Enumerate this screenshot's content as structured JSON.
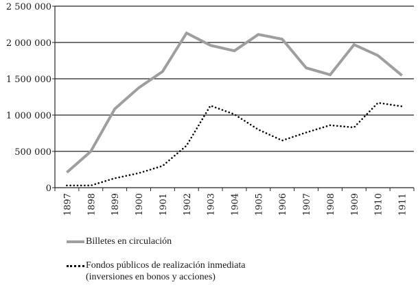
{
  "chart_data": {
    "type": "line",
    "title": "",
    "xlabel": "",
    "ylabel": "",
    "ylim": [
      0,
      2500000
    ],
    "y_ticks": [
      "0",
      "500 000",
      "1 000 000",
      "1 500 000",
      "2 000 000",
      "2 500 000"
    ],
    "y_tick_values": [
      0,
      500000,
      1000000,
      1500000,
      2000000,
      2500000
    ],
    "grid": "horizontal",
    "legend_position": "bottom",
    "categories": [
      "1897",
      "1898",
      "1899",
      "1900",
      "1901",
      "1902",
      "1903",
      "1904",
      "1905",
      "1906",
      "1907",
      "1908",
      "1909",
      "1910",
      "1911"
    ],
    "series": [
      {
        "name": "Billetes en circulación",
        "style": "solid",
        "color": "#9e9e9e",
        "values": [
          210000,
          500000,
          1085000,
          1375000,
          1600000,
          2130000,
          1960000,
          1885000,
          2110000,
          2045000,
          1650000,
          1555000,
          1970000,
          1820000,
          1545000
        ]
      },
      {
        "name": "Fondos públicos de realización inmediata (inversiones en bonos y acciones)",
        "style": "dotted",
        "color": "#000000",
        "values": [
          30000,
          30000,
          130000,
          200000,
          300000,
          580000,
          1130000,
          1010000,
          800000,
          650000,
          760000,
          860000,
          830000,
          1170000,
          1120000
        ]
      }
    ]
  },
  "legend": {
    "items": [
      {
        "label": "Billetes en circulación"
      },
      {
        "label_line1": "Fondos públicos de realización inmediata",
        "label_line2": "(inversiones en bonos y acciones)"
      }
    ]
  }
}
